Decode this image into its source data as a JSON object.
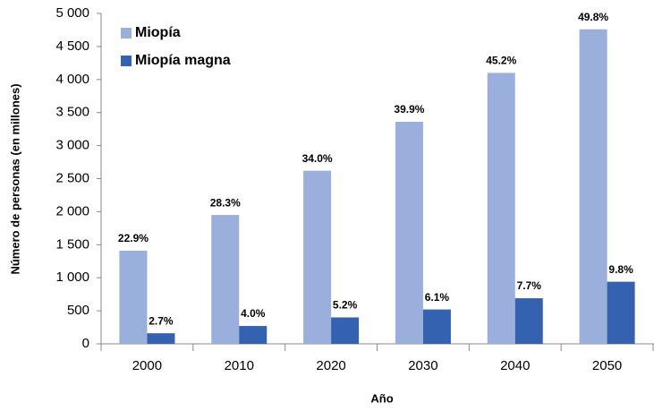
{
  "chart_data": {
    "type": "bar",
    "x_label": "Año",
    "y_label": "Número de personas (en millones)",
    "categories": [
      "2000",
      "2010",
      "2020",
      "2030",
      "2040",
      "2050"
    ],
    "series": [
      {
        "name": "Miopía",
        "color": "#9aafdc",
        "values": [
          1410,
          1950,
          2620,
          3360,
          4100,
          4760
        ],
        "share_labels": [
          "22.9%",
          "28.3%",
          "34.0%",
          "39.9%",
          "45.2%",
          "49.8%"
        ]
      },
      {
        "name": "Miopía magna",
        "color": "#3461b0",
        "values": [
          160,
          270,
          400,
          520,
          690,
          940
        ],
        "share_labels": [
          "2.7%",
          "4.0%",
          "5.2%",
          "6.1%",
          "7.7%",
          "9.8%"
        ]
      }
    ],
    "ylim": [
      0,
      5000
    ],
    "yticks": [
      0,
      500,
      {
        "value": 1000,
        "label": "1 000"
      },
      {
        "value": 1500,
        "label": "1 500"
      },
      {
        "value": 2000,
        "label": "2 000"
      },
      {
        "value": 2500,
        "label": "2 500"
      },
      {
        "value": 3000,
        "label": "3 000"
      },
      {
        "value": 3500,
        "label": "3 500"
      },
      {
        "value": 4000,
        "label": "4 000"
      },
      {
        "value": 4500,
        "label": "4 500"
      },
      {
        "value": 5000,
        "label": "5 000"
      }
    ],
    "legend": "upper-left",
    "grid": false
  }
}
